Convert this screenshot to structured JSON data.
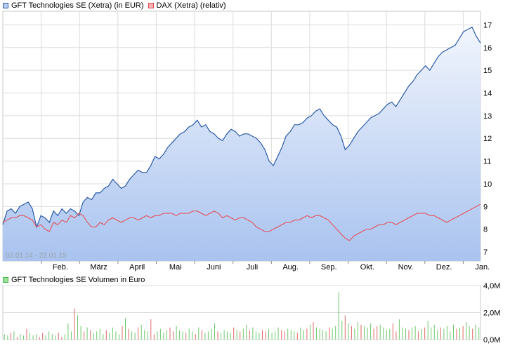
{
  "legend": {
    "series1": {
      "label": "GFT Technologies SE (Xetra) (in EUR)",
      "color": "#2a5ba8"
    },
    "series2": {
      "label": "DAX (Xetra) (relativ)",
      "color": "#e8474c"
    }
  },
  "volume_legend": {
    "label": "GFT Technologies SE Volumen in Euro",
    "color": "#44b544"
  },
  "date_range": "02.01.14 - 22.01.15",
  "chart_data": [
    {
      "type": "line",
      "ylim": [
        6.6,
        17.6
      ],
      "yticks": [
        "7",
        "8",
        "9",
        "10",
        "11",
        "12",
        "13",
        "14",
        "15",
        "16",
        "17"
      ],
      "xlabels": [
        "Feb.",
        "März",
        "April",
        "Mai",
        "Juni",
        "Juli",
        "Aug.",
        "Sep.",
        "Okt.",
        "Nov.",
        "Dez.",
        "Jan."
      ],
      "series": [
        {
          "name": "GFT Technologies SE (Xetra) (in EUR)",
          "color": "#2a5ba8",
          "fill": true,
          "values": [
            8.2,
            8.8,
            8.9,
            8.7,
            9.0,
            9.1,
            9.2,
            8.9,
            8.1,
            8.6,
            8.5,
            8.3,
            8.8,
            8.6,
            8.9,
            8.7,
            8.9,
            8.8,
            8.6,
            9.2,
            9.4,
            9.3,
            9.6,
            9.6,
            9.8,
            9.9,
            10.2,
            10.0,
            9.8,
            9.9,
            10.2,
            10.4,
            10.6,
            10.5,
            10.5,
            10.8,
            11.2,
            11.1,
            11.3,
            11.6,
            11.8,
            12.0,
            12.2,
            12.3,
            12.5,
            12.6,
            12.8,
            12.5,
            12.6,
            12.3,
            12.2,
            12.0,
            11.9,
            12.2,
            12.4,
            12.3,
            12.1,
            12.2,
            12.2,
            12.1,
            12.0,
            11.8,
            11.5,
            11.0,
            10.8,
            11.2,
            11.6,
            12.1,
            12.3,
            12.6,
            12.6,
            12.7,
            12.9,
            13.0,
            13.2,
            13.3,
            13.0,
            12.8,
            12.6,
            12.5,
            12.1,
            11.5,
            11.7,
            12.0,
            12.3,
            12.5,
            12.7,
            12.9,
            13.0,
            13.1,
            13.3,
            13.5,
            13.6,
            13.4,
            13.7,
            14.0,
            14.3,
            14.5,
            14.8,
            15.0,
            15.2,
            15.0,
            15.3,
            15.6,
            15.8,
            15.9,
            16.0,
            16.1,
            16.4,
            16.7,
            16.8,
            16.9,
            16.5,
            16.2
          ]
        },
        {
          "name": "DAX (Xetra) (relativ)",
          "color": "#e8474c",
          "fill": false,
          "values": [
            8.3,
            8.4,
            8.5,
            8.5,
            8.6,
            8.6,
            8.5,
            8.4,
            8.1,
            8.2,
            8.0,
            7.9,
            8.3,
            8.2,
            8.4,
            8.3,
            8.6,
            8.5,
            8.7,
            8.6,
            8.3,
            8.1,
            8.1,
            8.3,
            8.2,
            8.4,
            8.5,
            8.4,
            8.3,
            8.4,
            8.5,
            8.5,
            8.4,
            8.5,
            8.6,
            8.5,
            8.6,
            8.6,
            8.7,
            8.7,
            8.7,
            8.6,
            8.7,
            8.7,
            8.7,
            8.8,
            8.8,
            8.7,
            8.6,
            8.7,
            8.8,
            8.7,
            8.5,
            8.6,
            8.5,
            8.4,
            8.5,
            8.5,
            8.4,
            8.3,
            8.1,
            8.0,
            7.9,
            7.9,
            8.0,
            8.1,
            8.2,
            8.3,
            8.3,
            8.4,
            8.4,
            8.5,
            8.6,
            8.5,
            8.6,
            8.6,
            8.5,
            8.4,
            8.2,
            8.0,
            7.8,
            7.6,
            7.5,
            7.7,
            7.8,
            7.9,
            8.0,
            8.0,
            8.1,
            8.2,
            8.2,
            8.3,
            8.3,
            8.2,
            8.3,
            8.4,
            8.5,
            8.6,
            8.7,
            8.7,
            8.7,
            8.6,
            8.6,
            8.5,
            8.4,
            8.3,
            8.4,
            8.5,
            8.6,
            8.7,
            8.8,
            8.9,
            9.0,
            9.1
          ]
        }
      ]
    },
    {
      "type": "bar",
      "title": "GFT Technologies SE Volumen in Euro",
      "ylim": [
        0,
        4.0
      ],
      "yticks": [
        "0,0M",
        "2,0M",
        "4,0M"
      ],
      "values": [
        0.4,
        0.3,
        0.5,
        0.6,
        0.2,
        0.4,
        0.3,
        0.8,
        0.5,
        0.3,
        0.4,
        0.2,
        0.5,
        0.3,
        0.6,
        0.4,
        0.3,
        0.5,
        0.2,
        0.4,
        1.2,
        0.6,
        2.3,
        1.8,
        1.0,
        0.6,
        0.9,
        0.7,
        0.5,
        0.6,
        0.8,
        0.4,
        0.7,
        0.5,
        0.9,
        0.6,
        0.4,
        1.0,
        1.6,
        0.8,
        0.6,
        0.5,
        0.9,
        1.1,
        0.7,
        0.6,
        1.5,
        0.4,
        0.6,
        0.8,
        0.5,
        0.7,
        0.9,
        0.6,
        1.0,
        0.7,
        0.6,
        0.5,
        0.8,
        0.6,
        0.4,
        0.9,
        0.7,
        0.5,
        0.6,
        0.8,
        1.2,
        0.6,
        0.5,
        0.7,
        0.6,
        0.5,
        0.9,
        0.7,
        0.6,
        0.8,
        1.1,
        0.7,
        0.9,
        0.6,
        0.5,
        0.7,
        0.6,
        0.8,
        0.5,
        0.6,
        0.9,
        0.7,
        0.6,
        0.8,
        0.7,
        0.6,
        0.5,
        0.9,
        0.7,
        0.8,
        1.1,
        1.3,
        0.9,
        0.8,
        0.7,
        0.6,
        0.9,
        0.8,
        1.0,
        3.5,
        1.4,
        1.8,
        1.2,
        1.0,
        0.8,
        1.3,
        1.1,
        1.0,
        0.9,
        1.2,
        0.8,
        1.0,
        1.1,
        0.9,
        0.7,
        0.8,
        1.2,
        0.6,
        1.5,
        0.9,
        0.8,
        0.7,
        0.9,
        1.0,
        0.6,
        0.8,
        0.9,
        1.4,
        0.9,
        1.1,
        0.7,
        0.9,
        0.8,
        1.0,
        0.6,
        1.1,
        0.8,
        0.9,
        1.0,
        1.3,
        1.0,
        0.8,
        1.1,
        0.9
      ]
    }
  ]
}
